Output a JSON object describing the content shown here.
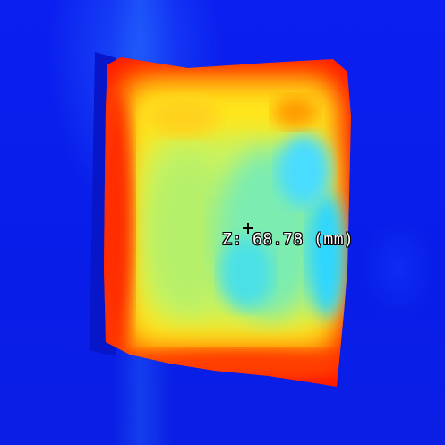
{
  "viewer": {
    "colormap_colors": {
      "background": "#0a1ee6",
      "high": "#ff1a00",
      "upper": "#ff8a00",
      "mid": "#ffee22",
      "lower_mid": "#9ef06a",
      "low": "#22d8ff"
    },
    "surface_icon": "height-map-surface",
    "cursor_icon": "crosshair-icon",
    "readout": {
      "text": "Z: 68.78 (mm)"
    }
  }
}
